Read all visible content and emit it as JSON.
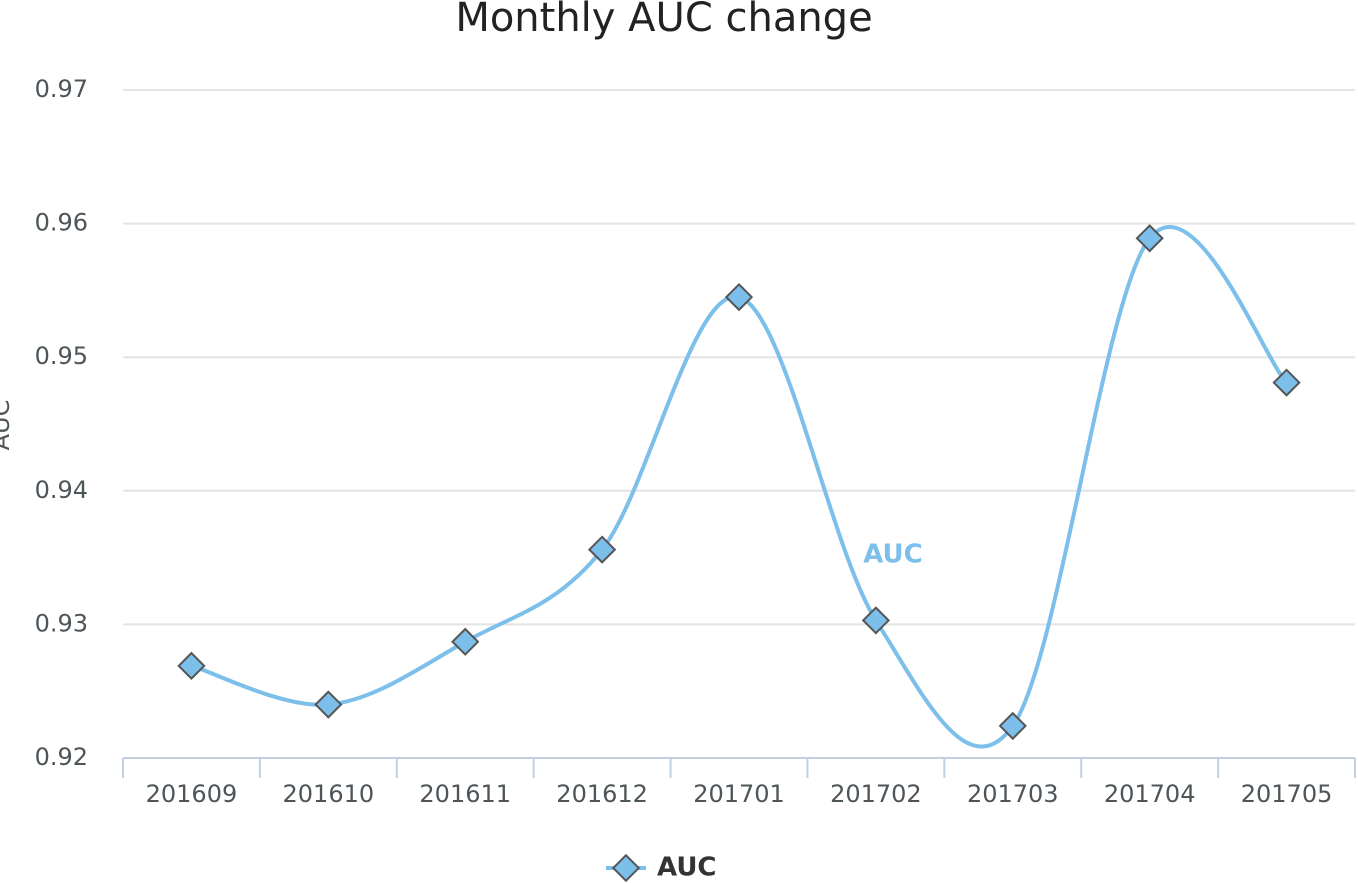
{
  "chart_data": {
    "type": "line",
    "title": "Monthly AUC change",
    "y_label": "AUC",
    "categories": [
      "201609",
      "201610",
      "201611",
      "201612",
      "201701",
      "201702",
      "201703",
      "201704",
      "201705"
    ],
    "series": [
      {
        "name": "AUC",
        "color": "#7cbfea",
        "values": [
          0.9269,
          0.924,
          0.9287,
          0.9356,
          0.9545,
          0.9303,
          0.9224,
          0.9589,
          0.9481
        ]
      }
    ],
    "ylim": [
      0.92,
      0.97
    ],
    "yticks": [
      0.92,
      0.93,
      0.94,
      0.95,
      0.96,
      0.97
    ],
    "grid": true,
    "legend": "bottom"
  }
}
